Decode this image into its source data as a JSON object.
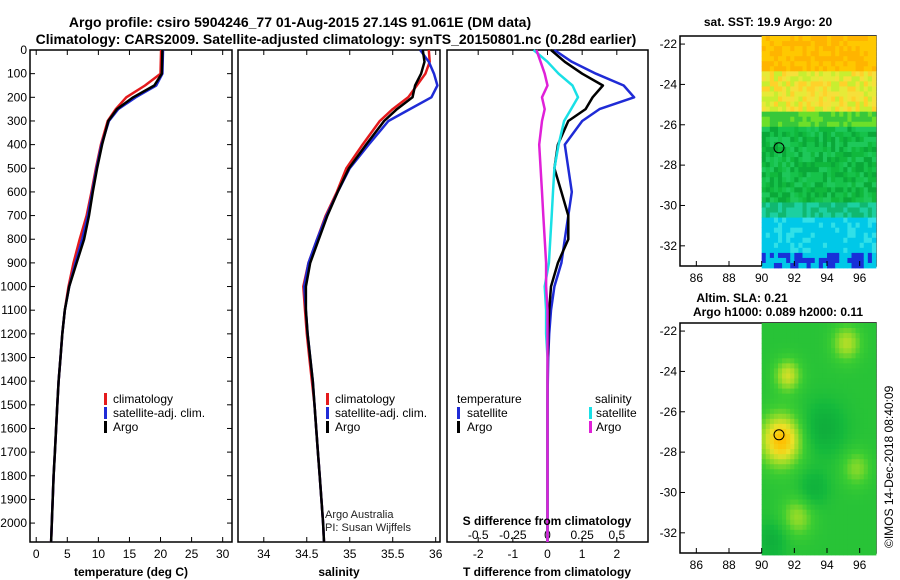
{
  "header": {
    "title_line1": "Argo profile: csiro 5904246_77 01-Aug-2015 27.14S 91.061E (DM data)",
    "title_line2": "Climatology: CARS2009. Satellite-adjusted climatology: synTS_20150801.nc (0.28d earlier)"
  },
  "colors": {
    "climatology": "#e41a1c",
    "satellite": "#1f2bd6",
    "argo": "#000000",
    "sat_salinity": "#19e0e6",
    "argo_salinity": "#e020d8"
  },
  "y_axis": {
    "ticks": [
      "0",
      "100",
      "200",
      "300",
      "400",
      "500",
      "600",
      "700",
      "800",
      "900",
      "1000",
      "1100",
      "1200",
      "1300",
      "1400",
      "1500",
      "1600",
      "1700",
      "1800",
      "1900",
      "2000"
    ]
  },
  "chart_data": [
    {
      "type": "line",
      "name": "temperature",
      "xlabel": "temperature (deg C)",
      "xlim": [
        -1,
        31.5
      ],
      "ylim": [
        2080,
        0
      ],
      "xticks": [
        "0",
        "5",
        "10",
        "15",
        "20",
        "25",
        "30"
      ],
      "xtick_values": [
        0,
        5,
        10,
        15,
        20,
        25,
        30
      ],
      "depth": [
        0,
        100,
        150,
        200,
        250,
        300,
        400,
        500,
        600,
        700,
        800,
        900,
        1000,
        1100,
        1200,
        1300,
        1400,
        1500,
        1600,
        1700,
        1800,
        1900,
        2000,
        2080
      ],
      "series": [
        {
          "name": "climatology",
          "color": "#e41a1c",
          "values": [
            20.1,
            20.0,
            17.5,
            14.5,
            12.8,
            11.5,
            10.4,
            9.6,
            8.9,
            8.1,
            7.0,
            6.0,
            5.2,
            4.6,
            4.2,
            3.9,
            3.6,
            3.4,
            3.2,
            3.0,
            2.8,
            2.65,
            2.5,
            2.4
          ]
        },
        {
          "name": "satellite-adj. clim.",
          "color": "#1f2bd6",
          "values": [
            20.4,
            20.3,
            19.3,
            16.0,
            13.2,
            11.7,
            10.5,
            9.7,
            9.0,
            8.3,
            7.4,
            6.3,
            5.3,
            4.6,
            4.2,
            3.9,
            3.6,
            3.4,
            3.2,
            3.0,
            2.8,
            2.65,
            2.5,
            2.4
          ]
        },
        {
          "name": "Argo",
          "color": "#000000",
          "values": [
            20.3,
            20.2,
            19.0,
            15.6,
            13.0,
            11.6,
            10.6,
            9.8,
            9.1,
            8.5,
            7.7,
            6.5,
            5.3,
            4.6,
            4.2,
            3.9,
            3.6,
            3.4,
            3.2,
            3.0,
            2.8,
            2.65,
            2.5,
            2.4
          ]
        }
      ],
      "legend": [
        "climatology",
        "satellite-adj. clim.",
        "Argo"
      ]
    },
    {
      "type": "line",
      "name": "salinity",
      "xlabel": "salinity",
      "xlim": [
        33.7,
        36.05
      ],
      "ylim": [
        2080,
        0
      ],
      "xticks": [
        "34",
        "34.5",
        "35",
        "35.5",
        "36"
      ],
      "xtick_values": [
        34,
        34.5,
        35,
        35.5,
        36
      ],
      "depth": [
        0,
        50,
        100,
        150,
        200,
        250,
        300,
        400,
        500,
        600,
        700,
        800,
        900,
        1000,
        1100,
        1200,
        1300,
        1400,
        1500,
        1600,
        1700,
        1800,
        1900,
        2000,
        2080
      ],
      "series": [
        {
          "name": "climatology",
          "color": "#e41a1c",
          "values": [
            35.92,
            35.93,
            35.88,
            35.78,
            35.68,
            35.5,
            35.35,
            35.15,
            34.96,
            34.85,
            34.72,
            34.62,
            34.52,
            34.46,
            34.48,
            34.5,
            34.53,
            34.56,
            34.59,
            34.61,
            34.63,
            34.65,
            34.67,
            34.69,
            34.7
          ]
        },
        {
          "name": "satellite-adj. clim.",
          "color": "#1f2bd6",
          "values": [
            35.82,
            35.92,
            35.98,
            36.02,
            35.95,
            35.7,
            35.45,
            35.22,
            35.0,
            34.86,
            34.73,
            34.62,
            34.52,
            34.47,
            34.49,
            34.51,
            34.54,
            34.57,
            34.59,
            34.61,
            34.63,
            34.65,
            34.67,
            34.69,
            34.7
          ]
        },
        {
          "name": "Argo",
          "color": "#000000",
          "values": [
            35.85,
            35.87,
            35.83,
            35.76,
            35.73,
            35.55,
            35.4,
            35.19,
            34.99,
            34.86,
            34.74,
            34.64,
            34.54,
            34.49,
            34.49,
            34.51,
            34.54,
            34.57,
            34.59,
            34.61,
            34.63,
            34.65,
            34.67,
            34.69,
            34.7
          ]
        }
      ],
      "legend": [
        "climatology",
        "satellite-adj. clim.",
        "Argo"
      ],
      "annotation": [
        "Argo Australia",
        "PI: Susan Wijffels"
      ]
    },
    {
      "type": "line",
      "name": "differences",
      "xlabel": "T difference from climatology",
      "xlabel2": "S difference from climatology",
      "xlim": [
        -2.9,
        2.9
      ],
      "ylim": [
        2080,
        0
      ],
      "xticks": [
        "-2",
        "-1",
        "0",
        "1",
        "2"
      ],
      "xtick_values": [
        -2,
        -1,
        0,
        1,
        2
      ],
      "xticks2": [
        "-0.5",
        "-0.25",
        "0",
        "0.25",
        "0.5"
      ],
      "xtick2_values": [
        -0.5,
        -0.25,
        0,
        0.25,
        0.5
      ],
      "depth": [
        0,
        50,
        100,
        150,
        200,
        250,
        300,
        400,
        500,
        600,
        700,
        800,
        900,
        1000,
        1100,
        1200,
        1300,
        1400,
        1500,
        1600,
        1700,
        1800,
        1900,
        2000,
        2080
      ],
      "series": [
        {
          "name": "temperature satellite",
          "color": "#1f2bd6",
          "values": [
            0.2,
            0.7,
            1.4,
            2.2,
            2.5,
            1.5,
            1.0,
            0.5,
            0.6,
            0.7,
            0.6,
            0.5,
            0.4,
            0.2,
            0.1,
            0.05,
            0.02,
            0.01,
            0.0,
            0.0,
            0.0,
            0.0,
            0.0,
            0.0,
            0.0
          ]
        },
        {
          "name": "temperature Argo",
          "color": "#000000",
          "values": [
            0.1,
            0.5,
            1.0,
            1.6,
            1.3,
            1.1,
            0.6,
            0.3,
            0.2,
            0.4,
            0.6,
            0.6,
            0.3,
            0.1,
            0.05,
            0.02,
            0.01,
            0.0,
            0.0,
            0.0,
            0.0,
            0.0,
            0.0,
            0.0,
            0.0
          ]
        },
        {
          "name": "salinity satellite",
          "color": "#19e0e6",
          "values": [
            -0.1,
            0.0,
            0.08,
            0.18,
            0.22,
            0.17,
            0.12,
            0.08,
            0.05,
            0.04,
            0.03,
            0.02,
            0.01,
            -0.02,
            -0.01,
            -0.01,
            0.0,
            0.0,
            0.0,
            0.0,
            0.0,
            0.0,
            0.0,
            0.0,
            0.0
          ]
        },
        {
          "name": "salinity Argo",
          "color": "#e020d8",
          "values": [
            -0.08,
            -0.05,
            -0.02,
            0.0,
            -0.04,
            -0.02,
            -0.04,
            -0.06,
            -0.05,
            -0.04,
            -0.03,
            -0.02,
            -0.01,
            -0.01,
            0.0,
            0.0,
            0.0,
            0.0,
            0.0,
            0.0,
            0.0,
            0.0,
            0.0,
            0.0,
            0.0
          ]
        }
      ],
      "legend_left_title": "temperature",
      "legend_left": [
        "satellite",
        "Argo"
      ],
      "legend_right_title": "salinity",
      "legend_right": [
        "satellite",
        "Argo"
      ]
    },
    {
      "type": "heatmap",
      "name": "sst-map",
      "title": "sat. SST: 19.9 Argo: 20",
      "xlim": [
        85,
        97
      ],
      "ylim": [
        -33,
        -21.6
      ],
      "xticks": [
        "86",
        "88",
        "90",
        "92",
        "94",
        "96"
      ],
      "xtick_values": [
        86,
        88,
        90,
        92,
        94,
        96
      ],
      "yticks": [
        "-22",
        "-24",
        "-26",
        "-28",
        "-30",
        "-32"
      ],
      "ytick_values": [
        -22,
        -24,
        -26,
        -28,
        -30,
        -32
      ],
      "data_lon_start": 90,
      "profile_lon": 91.06,
      "profile_lat": -27.14
    },
    {
      "type": "heatmap",
      "name": "sla-map",
      "title": "Altim. SLA: 0.21",
      "subtitle": "Argo h1000: 0.089 h2000: 0.11",
      "xlim": [
        85,
        97
      ],
      "ylim": [
        -33,
        -21.6
      ],
      "xticks": [
        "86",
        "88",
        "90",
        "92",
        "94",
        "96"
      ],
      "xtick_values": [
        86,
        88,
        90,
        92,
        94,
        96
      ],
      "yticks": [
        "-22",
        "-24",
        "-26",
        "-28",
        "-30",
        "-32"
      ],
      "ytick_values": [
        -22,
        -24,
        -26,
        -28,
        -30,
        -32
      ],
      "data_lon_start": 90,
      "profile_lon": 91.06,
      "profile_lat": -27.14
    }
  ],
  "credit": "©IMOS 14-Dec-2018 08:40:09"
}
